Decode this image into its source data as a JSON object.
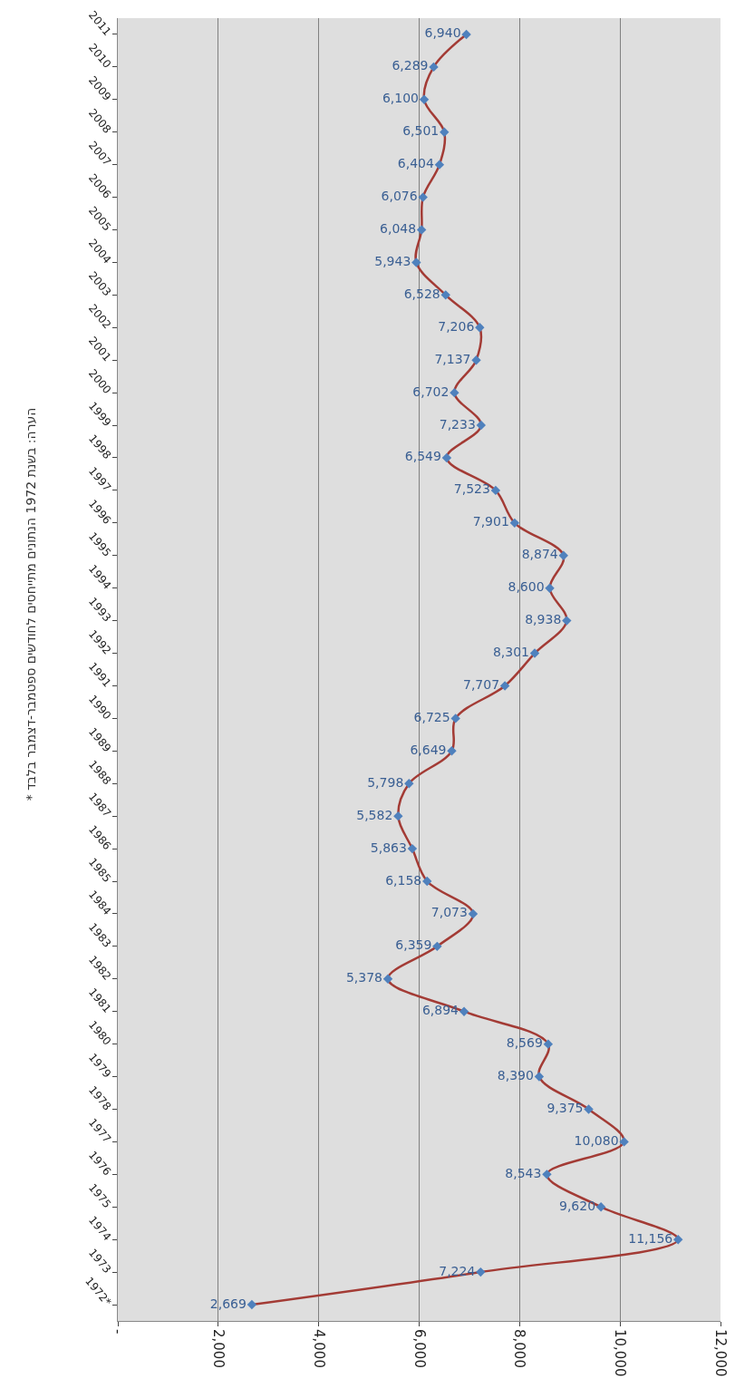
{
  "chart_data": {
    "type": "line",
    "orientation": "horizontal",
    "categories": [
      "2011",
      "2010",
      "2009",
      "2008",
      "2007",
      "2006",
      "2005",
      "2004",
      "2003",
      "2002",
      "2001",
      "2000",
      "1999",
      "1998",
      "1997",
      "1996",
      "1995",
      "1994",
      "1993",
      "1992",
      "1991",
      "1990",
      "1989",
      "1988",
      "1987",
      "1986",
      "1985",
      "1984",
      "1983",
      "1982",
      "1981",
      "1980",
      "1979",
      "1978",
      "1977",
      "1976",
      "1975",
      "1974",
      "1973",
      "1972*"
    ],
    "series": [
      {
        "color": "#a33b35",
        "values": [
          6940,
          6289,
          6100,
          6501,
          6404,
          6076,
          6048,
          5943,
          6528,
          7206,
          7137,
          6702,
          7233,
          6549,
          7523,
          7901,
          8874,
          8600,
          8938,
          8301,
          7707,
          6725,
          6649,
          5798,
          5582,
          5863,
          6158,
          7073,
          6359,
          5378,
          6894,
          8569,
          8390,
          9375,
          10080,
          8543,
          9620,
          11156,
          7224,
          2669
        ]
      }
    ],
    "xlim": [
      0,
      12000
    ],
    "xticks": [
      {
        "value": 0,
        "label": "-"
      },
      {
        "value": 2000,
        "label": "2,000"
      },
      {
        "value": 4000,
        "label": "4,000"
      },
      {
        "value": 6000,
        "label": "6,000"
      },
      {
        "value": 8000,
        "label": "8,000"
      },
      {
        "value": 10000,
        "label": "10,000"
      },
      {
        "value": 12000,
        "label": "12,000"
      }
    ],
    "value_labels": [
      "6,940",
      "6,289",
      "6,100",
      "6,501",
      "6,404",
      "6,076",
      "6,048",
      "5,943",
      "6,528",
      "7,206",
      "7,137",
      "6,702",
      "7,233",
      "6,549",
      "7,523",
      "7,901",
      "8,874",
      "8,600",
      "8,938",
      "8,301",
      "7,707",
      "6,725",
      "6,649",
      "5,798",
      "5,582",
      "5,863",
      "6,158",
      "7,073",
      "6,359",
      "5,378",
      "6,894",
      "8,569",
      "8,390",
      "9,375",
      "10,080",
      "8,543",
      "9,620",
      "11,156",
      "7,224",
      "2,669"
    ],
    "grid": "x",
    "marker": "diamond",
    "annotations": [
      "* הערה: בשנת 1972 הנתונים מתייחסים לחודשים ספטמבר-דצמבר בלבד"
    ]
  }
}
